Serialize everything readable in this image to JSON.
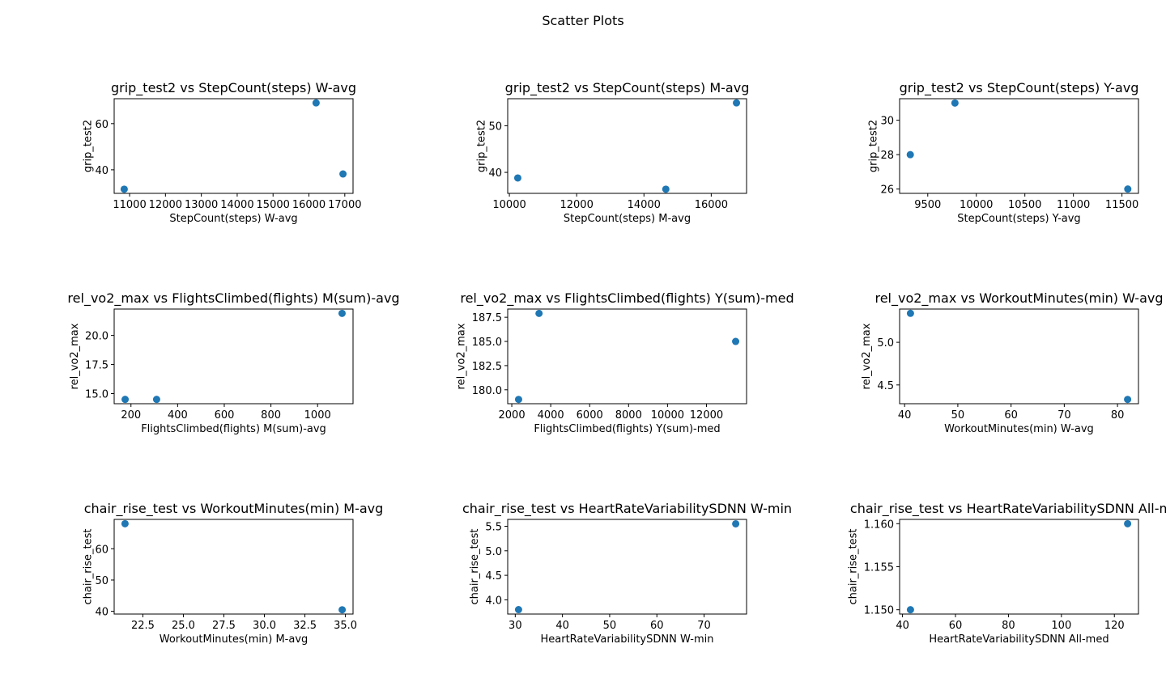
{
  "figure": {
    "title": "Scatter Plots"
  },
  "chart_data": [
    {
      "type": "scatter",
      "title": "grip_test2 vs StepCount(steps) W-avg",
      "xlabel": "StepCount(steps) W-avg",
      "ylabel": "grip_test2",
      "x": [
        10850,
        16200,
        16950
      ],
      "y": [
        31.6,
        69.0,
        38.2
      ],
      "xlim": [
        10570,
        17230
      ],
      "ylim": [
        29.8,
        70.8
      ],
      "xticks": [
        11000,
        12000,
        13000,
        14000,
        15000,
        16000,
        17000
      ],
      "xtick_labels": [
        "11000",
        "12000",
        "13000",
        "14000",
        "15000",
        "16000",
        "17000"
      ],
      "yticks": [
        40,
        60
      ],
      "ytick_labels": [
        "40",
        "60"
      ]
    },
    {
      "type": "scatter",
      "title": "grip_test2 vs StepCount(steps) M-avg",
      "xlabel": "StepCount(steps) M-avg",
      "ylabel": "grip_test2",
      "x": [
        10250,
        14650,
        16750
      ],
      "y": [
        38.8,
        36.4,
        54.9
      ],
      "xlim": [
        9950,
        17050
      ],
      "ylim": [
        35.5,
        55.8
      ],
      "xticks": [
        10000,
        12000,
        14000,
        16000
      ],
      "xtick_labels": [
        "10000",
        "12000",
        "14000",
        "16000"
      ],
      "yticks": [
        40,
        50
      ],
      "ytick_labels": [
        "40",
        "50"
      ]
    },
    {
      "type": "scatter",
      "title": "grip_test2 vs StepCount(steps) Y-avg",
      "xlabel": "StepCount(steps) Y-avg",
      "ylabel": "grip_test2",
      "x": [
        9320,
        9780,
        11560
      ],
      "y": [
        28.0,
        31.0,
        26.0
      ],
      "xlim": [
        9210,
        11670
      ],
      "ylim": [
        25.75,
        31.25
      ],
      "xticks": [
        9500,
        10000,
        10500,
        11000,
        11500
      ],
      "xtick_labels": [
        "9500",
        "10000",
        "10500",
        "11000",
        "11500"
      ],
      "yticks": [
        26,
        28,
        30
      ],
      "ytick_labels": [
        "26",
        "28",
        "30"
      ]
    },
    {
      "type": "scatter",
      "title": "rel_vo2_max vs FlightsClimbed(flights) M(sum)-avg",
      "xlabel": "FlightsClimbed(flights) M(sum)-avg",
      "ylabel": "rel_vo2_max",
      "x": [
        175,
        310,
        1105
      ],
      "y": [
        14.5,
        14.5,
        21.9
      ],
      "xlim": [
        128,
        1152
      ],
      "ylim": [
        14.13,
        22.27
      ],
      "xticks": [
        200,
        400,
        600,
        800,
        1000
      ],
      "xtick_labels": [
        "200",
        "400",
        "600",
        "800",
        "1000"
      ],
      "yticks": [
        15.0,
        17.5,
        20.0
      ],
      "ytick_labels": [
        "15.0",
        "17.5",
        "20.0"
      ]
    },
    {
      "type": "scatter",
      "title": "rel_vo2_max vs FlightsClimbed(flights) Y(sum)-med",
      "xlabel": "FlightsClimbed(flights) Y(sum)-med",
      "ylabel": "rel_vo2_max",
      "x": [
        2350,
        3400,
        13500
      ],
      "y": [
        179.0,
        187.9,
        185.0
      ],
      "xlim": [
        1790,
        14060
      ],
      "ylim": [
        178.56,
        188.35
      ],
      "xticks": [
        2000,
        4000,
        6000,
        8000,
        10000,
        12000
      ],
      "xtick_labels": [
        "2000",
        "4000",
        "6000",
        "8000",
        "10000",
        "12000"
      ],
      "yticks": [
        180.0,
        182.5,
        185.0,
        187.5
      ],
      "ytick_labels": [
        "180.0",
        "182.5",
        "185.0",
        "187.5"
      ]
    },
    {
      "type": "scatter",
      "title": "rel_vo2_max vs WorkoutMinutes(min) W-avg",
      "xlabel": "WorkoutMinutes(min) W-avg",
      "ylabel": "rel_vo2_max",
      "x": [
        41.1,
        81.9
      ],
      "y": [
        5.34,
        4.33
      ],
      "xlim": [
        39.06,
        83.94
      ],
      "ylim": [
        4.28,
        5.39
      ],
      "xticks": [
        40,
        50,
        60,
        70,
        80
      ],
      "xtick_labels": [
        "40",
        "50",
        "60",
        "70",
        "80"
      ],
      "yticks": [
        4.5,
        5.0
      ],
      "ytick_labels": [
        "4.5",
        "5.0"
      ]
    },
    {
      "type": "scatter",
      "title": "chair_rise_test vs WorkoutMinutes(min) M-avg",
      "xlabel": "WorkoutMinutes(min) M-avg",
      "ylabel": "chair_rise_test",
      "x": [
        21.4,
        34.8
      ],
      "y": [
        68.0,
        40.5
      ],
      "xlim": [
        20.73,
        35.47
      ],
      "ylim": [
        39.13,
        69.38
      ],
      "xticks": [
        22.5,
        25.0,
        27.5,
        30.0,
        32.5,
        35.0
      ],
      "xtick_labels": [
        "22.5",
        "25.0",
        "27.5",
        "30.0",
        "32.5",
        "35.0"
      ],
      "yticks": [
        40,
        50,
        60
      ],
      "ytick_labels": [
        "40",
        "50",
        "60"
      ]
    },
    {
      "type": "scatter",
      "title": "chair_rise_test vs HeartRateVariabilitySDNN W-min",
      "xlabel": "HeartRateVariabilitySDNN W-min",
      "ylabel": "chair_rise_test",
      "x": [
        30.7,
        76.7
      ],
      "y": [
        3.8,
        5.55
      ],
      "xlim": [
        28.4,
        79.0
      ],
      "ylim": [
        3.71,
        5.64
      ],
      "xticks": [
        30,
        40,
        50,
        60,
        70
      ],
      "xtick_labels": [
        "30",
        "40",
        "50",
        "60",
        "70"
      ],
      "yticks": [
        4.0,
        4.5,
        5.0,
        5.5
      ],
      "ytick_labels": [
        "4.0",
        "4.5",
        "5.0",
        "5.5"
      ]
    },
    {
      "type": "scatter",
      "title": "chair_rise_test vs HeartRateVariabilitySDNN All-med",
      "xlabel": "HeartRateVariabilitySDNN All-med",
      "ylabel": "chair_rise_test",
      "x": [
        43.0,
        125.0
      ],
      "y": [
        1.15,
        1.16
      ],
      "xlim": [
        38.9,
        129.1
      ],
      "ylim": [
        1.1495,
        1.1605
      ],
      "xticks": [
        40,
        60,
        80,
        100,
        120
      ],
      "xtick_labels": [
        "40",
        "60",
        "80",
        "100",
        "120"
      ],
      "yticks": [
        1.15,
        1.155,
        1.16
      ],
      "ytick_labels": [
        "1.150",
        "1.155",
        "1.160"
      ]
    }
  ]
}
